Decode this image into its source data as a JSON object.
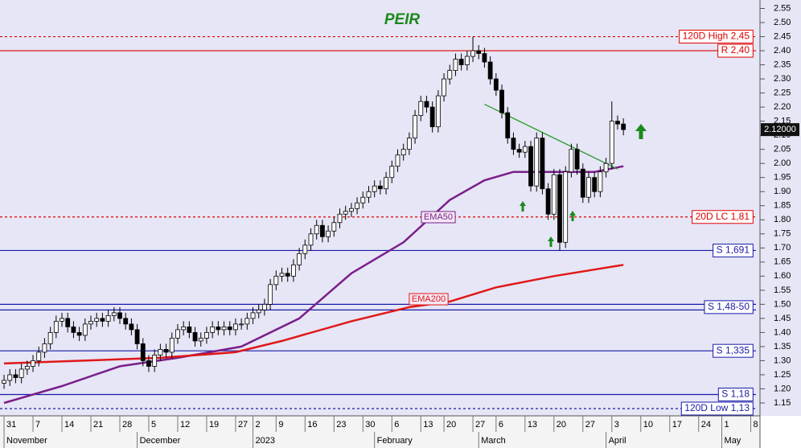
{
  "chart_data": {
    "type": "candlestick",
    "title": "PEIR",
    "x": [
      0,
      1,
      2,
      3,
      4,
      5,
      6,
      7,
      8,
      9,
      10,
      11,
      12,
      13,
      14,
      15,
      16,
      17,
      18,
      19,
      20,
      21,
      22,
      23,
      24,
      25,
      26,
      27,
      28,
      29,
      30,
      31,
      32,
      33,
      34,
      35,
      36,
      37,
      38,
      39,
      40,
      41,
      42,
      43,
      44,
      45,
      46,
      47,
      48,
      49,
      50,
      51,
      52,
      53,
      54,
      55,
      56,
      57,
      58,
      59,
      60,
      61,
      62,
      63,
      64,
      65,
      66,
      67,
      68,
      69,
      70,
      71,
      72,
      73,
      74,
      75,
      76,
      77,
      78,
      79,
      80,
      81,
      82,
      83,
      84,
      85,
      86,
      87,
      88,
      89,
      90,
      91,
      92,
      93,
      94,
      95,
      96,
      97,
      98,
      99,
      100,
      101,
      102,
      103,
      104,
      105,
      106,
      107
    ],
    "open": [
      1.22,
      1.23,
      1.25,
      1.24,
      1.27,
      1.28,
      1.3,
      1.33,
      1.36,
      1.4,
      1.44,
      1.45,
      1.42,
      1.4,
      1.39,
      1.43,
      1.44,
      1.45,
      1.44,
      1.46,
      1.47,
      1.45,
      1.43,
      1.41,
      1.36,
      1.3,
      1.28,
      1.32,
      1.34,
      1.33,
      1.38,
      1.41,
      1.42,
      1.4,
      1.37,
      1.38,
      1.4,
      1.42,
      1.41,
      1.42,
      1.41,
      1.43,
      1.43,
      1.45,
      1.47,
      1.48,
      1.5,
      1.57,
      1.6,
      1.61,
      1.6,
      1.64,
      1.68,
      1.71,
      1.75,
      1.78,
      1.74,
      1.76,
      1.79,
      1.82,
      1.83,
      1.84,
      1.86,
      1.88,
      1.9,
      1.92,
      1.91,
      1.95,
      1.99,
      2.03,
      2.05,
      2.09,
      2.17,
      2.22,
      2.2,
      2.13,
      2.24,
      2.3,
      2.33,
      2.37,
      2.35,
      2.38,
      2.4,
      2.39,
      2.36,
      2.3,
      2.26,
      2.18,
      2.09,
      2.05,
      2.04,
      2.06,
      1.92,
      2.09,
      1.91,
      1.82,
      1.96,
      1.72,
      1.97,
      2.05,
      1.98,
      1.88,
      1.95,
      1.9,
      1.97,
      2.0,
      2.15,
      2.14
    ],
    "high": [
      1.25,
      1.27,
      1.27,
      1.29,
      1.3,
      1.32,
      1.35,
      1.38,
      1.42,
      1.46,
      1.47,
      1.47,
      1.44,
      1.42,
      1.45,
      1.46,
      1.47,
      1.47,
      1.48,
      1.49,
      1.49,
      1.47,
      1.45,
      1.43,
      1.38,
      1.32,
      1.34,
      1.36,
      1.36,
      1.4,
      1.43,
      1.44,
      1.44,
      1.42,
      1.4,
      1.42,
      1.44,
      1.44,
      1.44,
      1.44,
      1.45,
      1.45,
      1.47,
      1.49,
      1.5,
      1.52,
      1.59,
      1.62,
      1.63,
      1.63,
      1.66,
      1.7,
      1.73,
      1.77,
      1.8,
      1.8,
      1.78,
      1.81,
      1.84,
      1.85,
      1.86,
      1.88,
      1.9,
      1.92,
      1.94,
      1.94,
      1.97,
      2.01,
      2.05,
      2.07,
      2.11,
      2.19,
      2.24,
      2.24,
      2.22,
      2.26,
      2.32,
      2.35,
      2.39,
      2.39,
      2.4,
      2.45,
      2.42,
      2.41,
      2.38,
      2.32,
      2.28,
      2.2,
      2.11,
      2.07,
      2.08,
      2.08,
      2.11,
      2.11,
      1.93,
      1.98,
      1.98,
      1.99,
      2.07,
      2.07,
      2.0,
      1.97,
      1.97,
      1.99,
      2.02,
      2.22,
      2.17,
      2.16
    ],
    "low": [
      1.2,
      1.21,
      1.22,
      1.22,
      1.25,
      1.26,
      1.28,
      1.31,
      1.34,
      1.38,
      1.42,
      1.4,
      1.38,
      1.37,
      1.37,
      1.41,
      1.42,
      1.42,
      1.42,
      1.44,
      1.43,
      1.41,
      1.39,
      1.34,
      1.28,
      1.26,
      1.26,
      1.3,
      1.31,
      1.31,
      1.36,
      1.39,
      1.38,
      1.35,
      1.35,
      1.36,
      1.38,
      1.39,
      1.39,
      1.39,
      1.39,
      1.41,
      1.41,
      1.43,
      1.45,
      1.46,
      1.48,
      1.55,
      1.58,
      1.58,
      1.58,
      1.62,
      1.66,
      1.69,
      1.73,
      1.72,
      1.72,
      1.74,
      1.77,
      1.8,
      1.81,
      1.82,
      1.84,
      1.86,
      1.88,
      1.89,
      1.89,
      1.93,
      1.97,
      2.01,
      2.03,
      2.07,
      2.15,
      2.18,
      2.11,
      2.11,
      2.22,
      2.28,
      2.31,
      2.33,
      2.33,
      2.36,
      2.37,
      2.34,
      2.28,
      2.24,
      2.16,
      2.07,
      2.03,
      2.02,
      2.02,
      1.9,
      1.9,
      1.89,
      1.8,
      1.8,
      1.69,
      1.7,
      1.95,
      1.96,
      1.86,
      1.86,
      1.88,
      1.88,
      1.95,
      1.98,
      2.12,
      2.1
    ],
    "close": [
      1.23,
      1.25,
      1.24,
      1.27,
      1.28,
      1.3,
      1.33,
      1.36,
      1.4,
      1.44,
      1.45,
      1.42,
      1.4,
      1.39,
      1.43,
      1.44,
      1.45,
      1.44,
      1.46,
      1.47,
      1.45,
      1.43,
      1.41,
      1.36,
      1.3,
      1.28,
      1.32,
      1.34,
      1.33,
      1.38,
      1.41,
      1.42,
      1.4,
      1.37,
      1.38,
      1.4,
      1.42,
      1.41,
      1.42,
      1.41,
      1.43,
      1.43,
      1.45,
      1.47,
      1.48,
      1.5,
      1.57,
      1.6,
      1.61,
      1.6,
      1.64,
      1.68,
      1.71,
      1.75,
      1.78,
      1.74,
      1.76,
      1.79,
      1.82,
      1.83,
      1.84,
      1.86,
      1.88,
      1.9,
      1.92,
      1.91,
      1.95,
      1.99,
      2.03,
      2.05,
      2.09,
      2.17,
      2.22,
      2.2,
      2.13,
      2.24,
      2.3,
      2.33,
      2.37,
      2.35,
      2.38,
      2.4,
      2.39,
      2.36,
      2.3,
      2.26,
      2.18,
      2.09,
      2.05,
      2.04,
      2.06,
      1.92,
      2.09,
      1.91,
      1.82,
      1.96,
      1.72,
      1.97,
      2.05,
      1.98,
      1.88,
      1.95,
      1.9,
      1.97,
      2.0,
      2.15,
      2.14,
      2.12
    ],
    "series": [
      {
        "name": "EMA50",
        "color": "#7a1f8a",
        "x": [
          0,
          10,
          20,
          30,
          41,
          51,
          60,
          69,
          77,
          83,
          88,
          96,
          102,
          107
        ],
        "values": [
          1.15,
          1.21,
          1.28,
          1.31,
          1.35,
          1.45,
          1.61,
          1.72,
          1.87,
          1.94,
          1.97,
          1.97,
          1.97,
          1.99
        ]
      },
      {
        "name": "EMA200",
        "color": "#e01818",
        "x": [
          0,
          27,
          40,
          48,
          60,
          70,
          77,
          85,
          95,
          107
        ],
        "values": [
          1.29,
          1.31,
          1.33,
          1.37,
          1.44,
          1.49,
          1.51,
          1.56,
          1.6,
          1.64
        ]
      }
    ],
    "trendline": {
      "color": "#2e9a2e",
      "x": [
        83,
        106
      ],
      "values": [
        2.21,
        1.98
      ]
    },
    "levels": [
      {
        "label": "120D High 2,45",
        "values": [
          2.45
        ],
        "color": "#e00000",
        "dashed": true
      },
      {
        "label": "R 2,40",
        "values": [
          2.4
        ],
        "color": "#e00000",
        "dashed": false
      },
      {
        "label": "20D LC 1,81",
        "values": [
          1.81
        ],
        "color": "#e00000",
        "dashed": true
      },
      {
        "label": "S 1,691",
        "values": [
          1.691
        ],
        "color": "#1a1aa8",
        "dashed": false
      },
      {
        "label": "S 1,48-50",
        "values": [
          1.48,
          1.5
        ],
        "color": "#1a1aa8",
        "dashed": false
      },
      {
        "label": "S 1,335",
        "values": [
          1.335
        ],
        "color": "#1a1aa8",
        "dashed": false
      },
      {
        "label": "S 1,18",
        "values": [
          1.18
        ],
        "color": "#1a1aa8",
        "dashed": false
      },
      {
        "label": "120D Low 1,13",
        "values": [
          1.13
        ],
        "color": "#1a1aa8",
        "dashed": true
      }
    ],
    "last_price": {
      "value": 2.12,
      "label": "2.12000"
    },
    "xlim": [
      -0.7,
      129.9
    ],
    "ylim": [
      1.11,
      2.58
    ],
    "xticks": [
      {
        "value": 0,
        "label": "31"
      },
      {
        "value": 5,
        "label": "7"
      },
      {
        "value": 10,
        "label": "14"
      },
      {
        "value": 15,
        "label": "21"
      },
      {
        "value": 20,
        "label": "28"
      },
      {
        "value": 25,
        "label": "5"
      },
      {
        "value": 30,
        "label": "12"
      },
      {
        "value": 35,
        "label": "19"
      },
      {
        "value": 40,
        "label": "27"
      },
      {
        "value": 43,
        "label": "2"
      },
      {
        "value": 47,
        "label": "9"
      },
      {
        "value": 52,
        "label": "16"
      },
      {
        "value": 57,
        "label": "23"
      },
      {
        "value": 62,
        "label": "30"
      },
      {
        "value": 67,
        "label": "6"
      },
      {
        "value": 72,
        "label": "13"
      },
      {
        "value": 76,
        "label": "20"
      },
      {
        "value": 81,
        "label": "27"
      },
      {
        "value": 85,
        "label": "6"
      },
      {
        "value": 90,
        "label": "13"
      },
      {
        "value": 95,
        "label": "20"
      },
      {
        "value": 100,
        "label": "27"
      },
      {
        "value": 105,
        "label": "3"
      },
      {
        "value": 110,
        "label": "10"
      },
      {
        "value": 115,
        "label": "17"
      },
      {
        "value": 120,
        "label": "24"
      },
      {
        "value": 124,
        "label": "1"
      },
      {
        "value": 129,
        "label": "8"
      }
    ],
    "xmonths": [
      {
        "value": 0,
        "label": "November"
      },
      {
        "value": 23,
        "label": "December"
      },
      {
        "value": 43,
        "label": "2023"
      },
      {
        "value": 64,
        "label": "February"
      },
      {
        "value": 82,
        "label": "March"
      },
      {
        "value": 104,
        "label": "April"
      },
      {
        "value": 124,
        "label": "May"
      }
    ],
    "yticks": [
      2.55,
      {
        "value": 2.5,
        "label": "2.50"
      },
      2.45,
      {
        "value": 2.4,
        "label": "2.40"
      },
      2.35,
      {
        "value": 2.3,
        "label": "2.30"
      },
      2.25,
      {
        "value": 2.2,
        "label": "2.20"
      },
      2.15,
      {
        "value": 2.1,
        "label": "2.10"
      },
      2.05,
      {
        "value": 2.0,
        "label": "2.00"
      },
      1.95,
      {
        "value": 1.9,
        "label": "1.90"
      },
      1.85,
      {
        "value": 1.8,
        "label": "1.80"
      },
      1.75,
      {
        "value": 1.7,
        "label": "1.70"
      },
      1.65,
      {
        "value": 1.6,
        "label": "1.60"
      },
      1.55,
      {
        "value": 1.5,
        "label": "1.50"
      },
      1.45,
      {
        "value": 1.4,
        "label": "1.40"
      },
      1.35,
      {
        "value": 1.3,
        "label": "1.30"
      },
      1.25,
      {
        "value": 1.2,
        "label": "1.20"
      },
      1.15
    ]
  }
}
